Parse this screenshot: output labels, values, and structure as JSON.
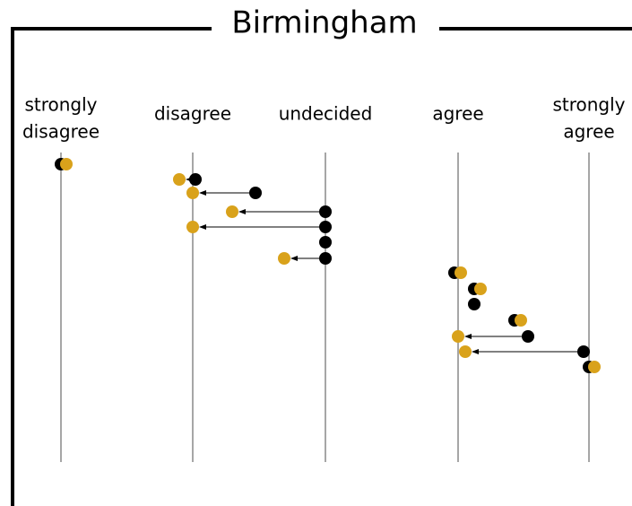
{
  "title": "Birmingham",
  "columns": [
    {
      "lines": [
        "strongly",
        "disagree"
      ]
    },
    {
      "lines": [
        "disagree"
      ]
    },
    {
      "lines": [
        "undecided"
      ]
    },
    {
      "lines": [
        "agree"
      ]
    },
    {
      "lines": [
        "strongly",
        "agree"
      ]
    }
  ]
}
